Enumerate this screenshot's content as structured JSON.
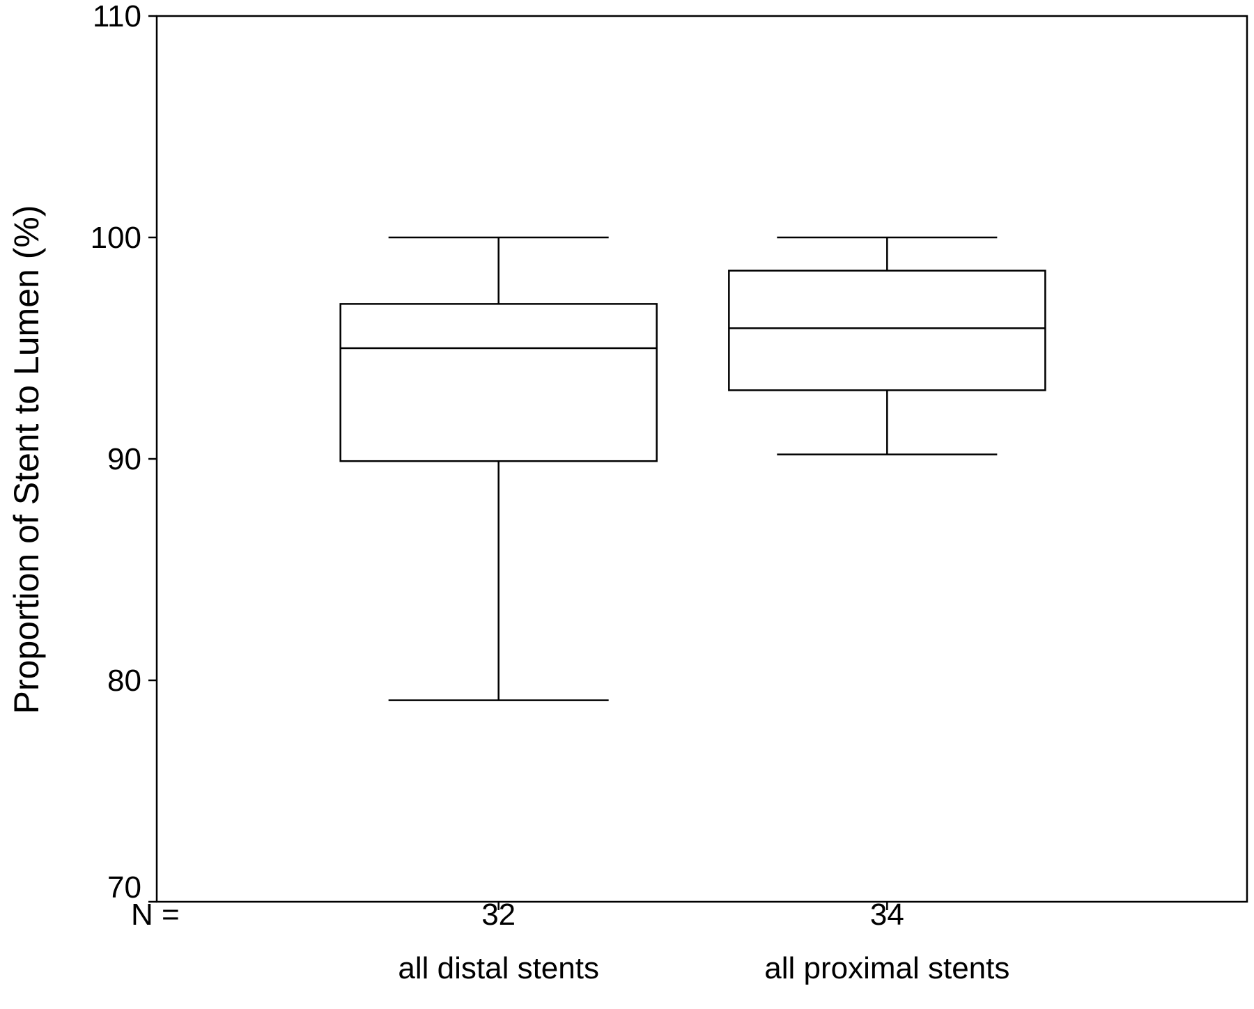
{
  "chart_data": {
    "type": "boxplot",
    "ylabel": "Proportion of Stent to Lumen (%)",
    "ylim": [
      70,
      110
    ],
    "yticks": [
      70,
      80,
      90,
      100,
      110
    ],
    "n_prefix": "N =",
    "categories": [
      "all distal stents",
      "all proximal stents"
    ],
    "n_values": [
      "32",
      "34"
    ],
    "boxes": [
      {
        "category": "all distal stents",
        "n": "32",
        "min": 79.1,
        "q1": 89.9,
        "median": 95.0,
        "q3": 97.0,
        "max": 100.0
      },
      {
        "category": "all proximal stents",
        "n": "34",
        "min": 90.2,
        "q1": 93.1,
        "median": 95.9,
        "q3": 98.5,
        "max": 100.0
      }
    ],
    "grid": false,
    "legend": "none"
  }
}
